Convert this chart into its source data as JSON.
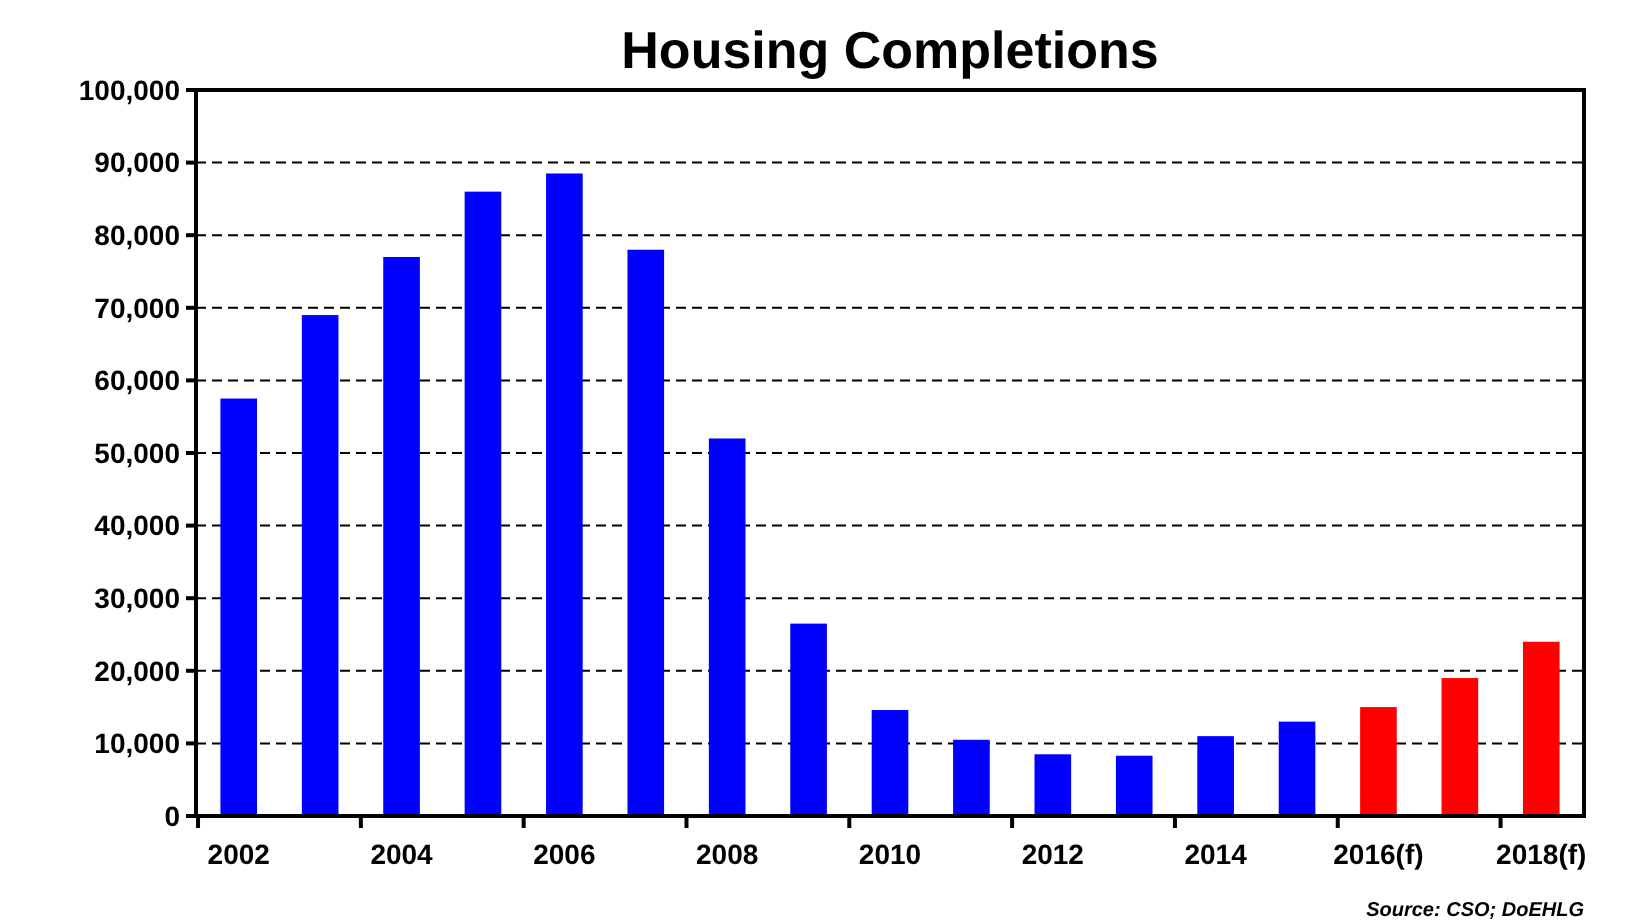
{
  "chart_data": {
    "type": "bar",
    "title": "Housing Completions",
    "categories": [
      "2002",
      null,
      "2004",
      null,
      "2006",
      null,
      "2008",
      null,
      "2010",
      null,
      "2012",
      null,
      "2014",
      null,
      "2016(f)",
      null,
      "2018(f)"
    ],
    "values": [
      57500,
      69000,
      77000,
      86000,
      88500,
      78000,
      52000,
      26500,
      14600,
      10500,
      8500,
      8300,
      11000,
      13000,
      15000,
      19000,
      24000
    ],
    "colors": [
      "#0000ff",
      "#0000ff",
      "#0000ff",
      "#0000ff",
      "#0000ff",
      "#0000ff",
      "#0000ff",
      "#0000ff",
      "#0000ff",
      "#0000ff",
      "#0000ff",
      "#0000ff",
      "#0000ff",
      "#0000ff",
      "#ff0000",
      "#ff0000",
      "#ff0000"
    ],
    "ylim": [
      0,
      100000
    ],
    "yticks": [
      {
        "value": 0,
        "label": "0"
      },
      {
        "value": 10000,
        "label": "10,000"
      },
      {
        "value": 20000,
        "label": "20,000"
      },
      {
        "value": 30000,
        "label": "30,000"
      },
      {
        "value": 40000,
        "label": "40,000"
      },
      {
        "value": 50000,
        "label": "50,000"
      },
      {
        "value": 60000,
        "label": "60,000"
      },
      {
        "value": 70000,
        "label": "70,000"
      },
      {
        "value": 80000,
        "label": "80,000"
      },
      {
        "value": 90000,
        "label": "90,000"
      },
      {
        "value": 100000,
        "label": "100,000"
      }
    ],
    "grid": "y",
    "annotations": [
      "Source: CSO; DoEHLG"
    ]
  }
}
